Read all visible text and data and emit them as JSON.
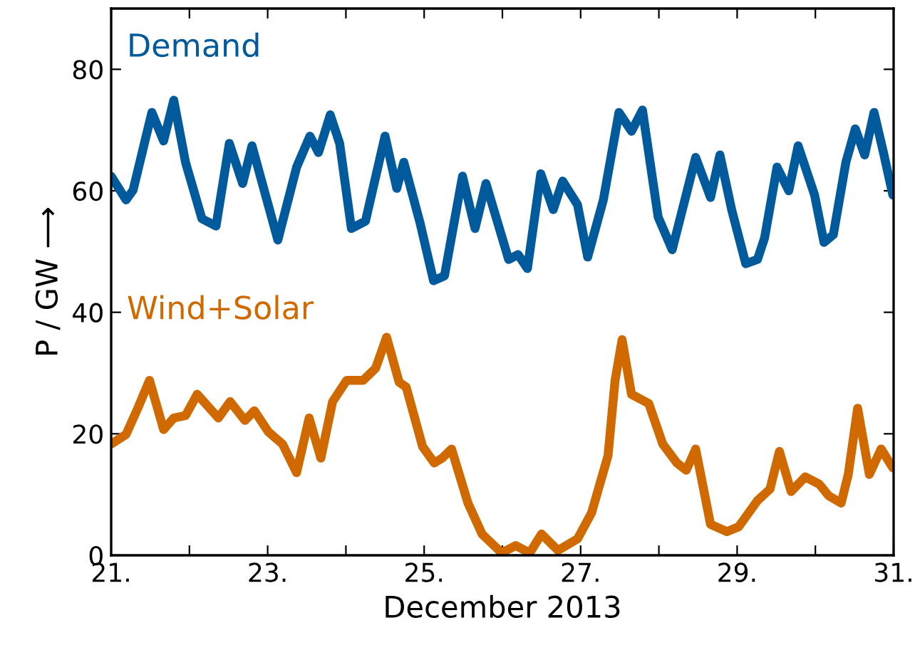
{
  "chart_data": {
    "type": "line",
    "xlabel": "December 2013",
    "ylabel": "P / GW ⟶",
    "xlim": [
      21,
      31
    ],
    "ylim": [
      0,
      90
    ],
    "xticks": [
      {
        "value": 21,
        "label": "21."
      },
      {
        "value": 22,
        "label": null
      },
      {
        "value": 23,
        "label": "23."
      },
      {
        "value": 24,
        "label": null
      },
      {
        "value": 25,
        "label": "25."
      },
      {
        "value": 26,
        "label": null
      },
      {
        "value": 27,
        "label": "27."
      },
      {
        "value": 28,
        "label": null
      },
      {
        "value": 29,
        "label": "29."
      },
      {
        "value": 30,
        "label": null
      },
      {
        "value": 31,
        "label": "31."
      }
    ],
    "yticks": [
      0,
      20,
      40,
      60,
      80
    ],
    "grid": false,
    "legend": false,
    "marker": "none",
    "line_style": "solid",
    "series": [
      {
        "name": "Demand",
        "color": "#005a9c",
        "x": [
          21.0,
          21.19,
          21.28,
          21.52,
          21.67,
          21.8,
          21.95,
          22.16,
          22.34,
          22.51,
          22.68,
          22.8,
          23.13,
          23.37,
          23.54,
          23.65,
          23.8,
          23.92,
          24.07,
          24.25,
          24.5,
          24.65,
          24.74,
          24.95,
          25.12,
          25.26,
          25.49,
          25.65,
          25.79,
          26.08,
          26.2,
          26.32,
          26.49,
          26.65,
          26.77,
          26.96,
          27.09,
          27.29,
          27.49,
          27.65,
          27.79,
          27.99,
          28.17,
          28.47,
          28.66,
          28.78,
          28.93,
          29.11,
          29.26,
          29.35,
          29.51,
          29.66,
          29.78,
          29.99,
          30.11,
          30.23,
          30.39,
          30.51,
          30.63,
          30.75,
          30.87,
          30.99
        ],
        "values": [
          62.4,
          58.5,
          60.1,
          72.9,
          68.2,
          74.9,
          64.7,
          55.4,
          54.2,
          67.8,
          61.2,
          67.4,
          51.9,
          63.9,
          69.0,
          66.3,
          72.5,
          67.8,
          53.8,
          55.0,
          69.0,
          60.4,
          64.7,
          54.6,
          45.2,
          46.0,
          62.4,
          53.8,
          61.2,
          48.7,
          49.5,
          47.2,
          62.8,
          56.9,
          61.6,
          57.7,
          49.1,
          58.5,
          72.9,
          69.8,
          73.3,
          55.7,
          50.3,
          65.5,
          58.9,
          65.9,
          56.9,
          48.0,
          48.7,
          52.2,
          63.9,
          60.0,
          67.4,
          59.3,
          51.5,
          52.8,
          64.7,
          70.2,
          65.9,
          72.9,
          66.3,
          59.3
        ]
      },
      {
        "name": "Wind+Solar",
        "color": "#d06a00",
        "x": [
          21.0,
          21.19,
          21.34,
          21.49,
          21.67,
          21.8,
          21.95,
          22.1,
          22.37,
          22.52,
          22.71,
          22.83,
          23.01,
          23.19,
          23.37,
          23.53,
          23.68,
          23.83,
          24.01,
          24.22,
          24.38,
          24.52,
          24.68,
          24.77,
          24.98,
          25.13,
          25.23,
          25.35,
          25.56,
          25.74,
          25.99,
          26.17,
          26.35,
          26.5,
          26.71,
          26.96,
          27.14,
          27.35,
          27.44,
          27.53,
          27.65,
          27.87,
          28.05,
          28.23,
          28.35,
          28.47,
          28.66,
          28.87,
          29.02,
          29.26,
          29.42,
          29.54,
          29.69,
          29.87,
          30.05,
          30.17,
          30.33,
          30.42,
          30.54,
          30.69,
          30.84,
          30.99
        ],
        "values": [
          18.3,
          19.9,
          24.2,
          28.8,
          20.7,
          22.6,
          23.0,
          26.5,
          22.6,
          25.3,
          22.2,
          23.8,
          20.3,
          18.3,
          13.6,
          22.6,
          16.0,
          25.3,
          28.8,
          28.8,
          30.8,
          35.9,
          28.5,
          27.7,
          17.9,
          15.2,
          16.0,
          17.5,
          8.6,
          3.5,
          0.4,
          1.6,
          0.4,
          3.5,
          0.8,
          2.7,
          7.0,
          16.4,
          28.8,
          35.5,
          26.5,
          25.0,
          18.3,
          15.2,
          14.0,
          17.5,
          5.1,
          3.9,
          4.7,
          9.0,
          10.9,
          17.1,
          10.5,
          12.9,
          11.7,
          9.8,
          8.6,
          13.3,
          24.2,
          13.3,
          17.5,
          14.4
        ]
      }
    ]
  }
}
